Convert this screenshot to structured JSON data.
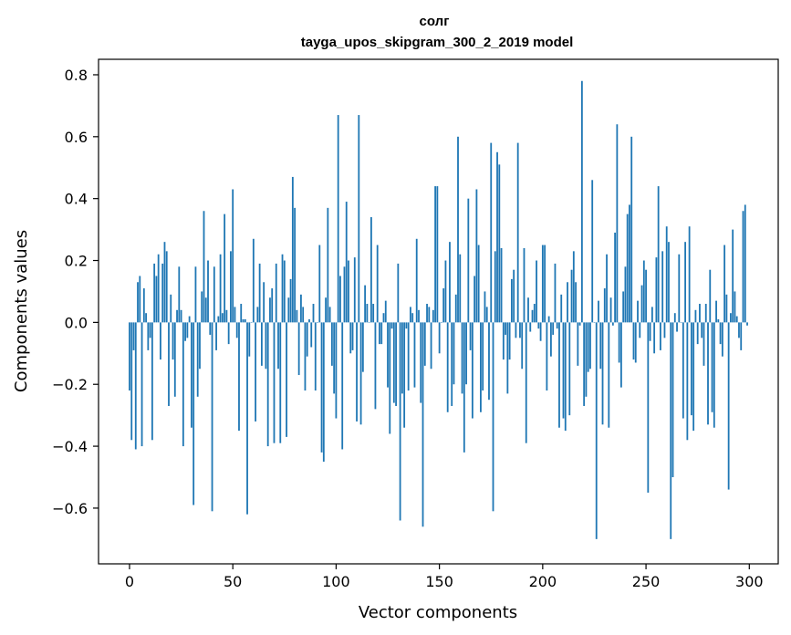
{
  "chart_data": {
    "type": "bar",
    "title": "солг",
    "subtitle": "tayga_upos_skipgram_300_2_2019 model",
    "xlabel": "Vector components",
    "ylabel": "Components values",
    "xlim": [
      -15,
      314
    ],
    "ylim": [
      -0.78,
      0.85
    ],
    "xticks": [
      0,
      50,
      100,
      150,
      200,
      250,
      300
    ],
    "yticks": [
      -0.6,
      -0.4,
      -0.2,
      0.0,
      0.2,
      0.4,
      0.6,
      0.8
    ],
    "ytick_labels": [
      "−0.6",
      "−0.4",
      "−0.2",
      "0.0",
      "0.2",
      "0.4",
      "0.6",
      "0.8"
    ],
    "xtick_labels": [
      "0",
      "50",
      "100",
      "150",
      "200",
      "250",
      "300"
    ],
    "bar_color": "#1f77b4",
    "grid": false,
    "values": [
      -0.22,
      -0.38,
      -0.09,
      -0.41,
      0.13,
      0.15,
      -0.4,
      0.11,
      0.03,
      -0.09,
      -0.05,
      -0.38,
      0.19,
      0.15,
      0.22,
      -0.12,
      0.19,
      0.26,
      0.23,
      -0.27,
      0.09,
      -0.12,
      -0.24,
      0.04,
      0.18,
      0.04,
      -0.4,
      -0.06,
      -0.05,
      0.02,
      -0.34,
      -0.59,
      0.18,
      -0.24,
      -0.15,
      0.1,
      0.36,
      0.08,
      0.2,
      -0.04,
      -0.61,
      0.18,
      -0.09,
      0.02,
      0.22,
      0.03,
      0.35,
      0.04,
      -0.07,
      0.23,
      0.43,
      0.05,
      -0.05,
      -0.35,
      0.06,
      0.01,
      0.01,
      -0.62,
      -0.11,
      0.0,
      0.27,
      -0.32,
      0.05,
      0.19,
      -0.14,
      0.13,
      -0.15,
      -0.4,
      0.08,
      0.11,
      -0.39,
      0.19,
      -0.15,
      -0.39,
      0.22,
      0.2,
      -0.37,
      0.08,
      0.14,
      0.47,
      0.37,
      0.04,
      -0.17,
      0.09,
      0.05,
      -0.22,
      -0.11,
      0.01,
      -0.08,
      0.06,
      -0.22,
      0.0,
      0.25,
      -0.42,
      -0.45,
      0.08,
      0.37,
      0.05,
      -0.14,
      -0.23,
      -0.31,
      0.67,
      0.15,
      -0.41,
      0.18,
      0.39,
      0.2,
      -0.1,
      -0.09,
      0.21,
      -0.32,
      0.67,
      -0.33,
      -0.16,
      0.12,
      0.06,
      0.0,
      0.34,
      0.06,
      -0.28,
      0.25,
      -0.07,
      -0.07,
      0.03,
      0.07,
      -0.21,
      -0.36,
      -0.02,
      -0.26,
      -0.27,
      0.19,
      -0.64,
      -0.23,
      -0.34,
      -0.02,
      -0.22,
      0.05,
      0.03,
      -0.21,
      0.27,
      0.04,
      -0.26,
      -0.66,
      -0.14,
      0.06,
      0.05,
      -0.15,
      0.04,
      0.44,
      0.44,
      -0.1,
      0.0,
      0.11,
      0.2,
      -0.29,
      0.26,
      -0.27,
      -0.2,
      0.09,
      0.6,
      0.22,
      -0.23,
      -0.42,
      -0.2,
      0.4,
      -0.09,
      -0.31,
      0.15,
      0.43,
      0.25,
      -0.29,
      -0.22,
      0.1,
      0.05,
      -0.25,
      0.58,
      -0.61,
      0.23,
      0.55,
      0.51,
      0.24,
      -0.12,
      -0.04,
      -0.23,
      -0.12,
      0.14,
      0.17,
      -0.05,
      0.58,
      -0.05,
      -0.15,
      0.24,
      -0.39,
      0.08,
      -0.03,
      0.04,
      0.06,
      0.2,
      -0.02,
      -0.06,
      0.25,
      0.25,
      -0.22,
      0.02,
      -0.11,
      -0.04,
      0.19,
      -0.02,
      -0.34,
      0.09,
      -0.31,
      -0.35,
      0.13,
      -0.3,
      0.17,
      0.23,
      0.13,
      -0.14,
      -0.01,
      0.78,
      -0.27,
      -0.24,
      -0.16,
      -0.15,
      0.46,
      0.0,
      -0.7,
      0.07,
      -0.15,
      -0.33,
      0.11,
      0.22,
      -0.34,
      0.08,
      -0.01,
      0.29,
      0.64,
      -0.13,
      -0.21,
      0.1,
      0.18,
      0.35,
      0.38,
      0.6,
      -0.12,
      -0.13,
      0.07,
      -0.05,
      0.12,
      0.2,
      0.17,
      -0.55,
      -0.06,
      0.05,
      -0.1,
      0.21,
      0.44,
      -0.09,
      0.23,
      -0.05,
      0.31,
      0.26,
      -0.7,
      -0.5,
      0.03,
      -0.03,
      0.22,
      0.0,
      -0.31,
      0.26,
      -0.38,
      0.31,
      -0.3,
      -0.35,
      0.04,
      -0.07,
      0.06,
      -0.05,
      -0.14,
      0.06,
      -0.33,
      0.17,
      -0.29,
      -0.34,
      0.07,
      0.01,
      -0.07,
      -0.11,
      0.25,
      0.09,
      -0.54,
      0.03,
      0.3,
      0.1,
      0.02,
      -0.05,
      -0.09,
      0.36,
      0.38,
      -0.01
    ]
  }
}
